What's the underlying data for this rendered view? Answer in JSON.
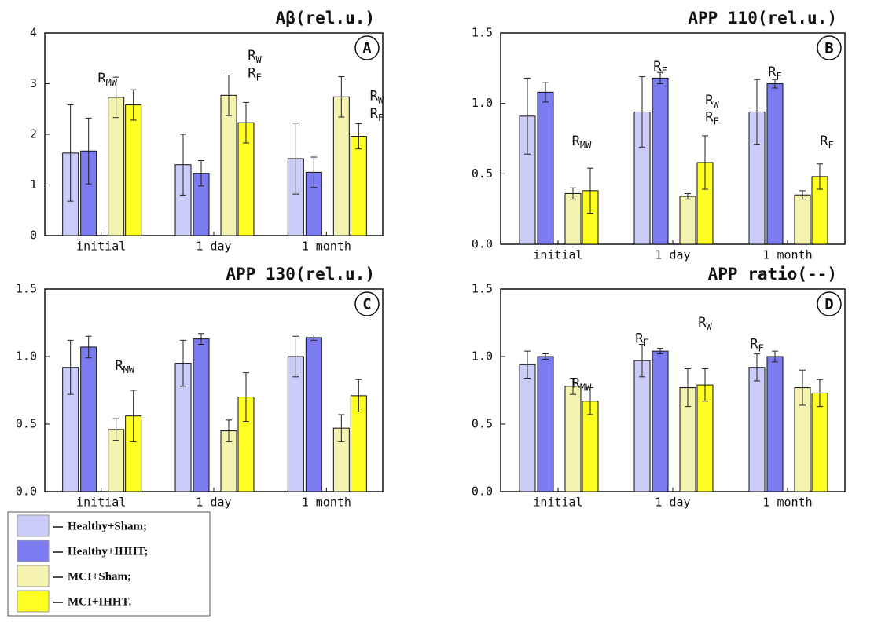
{
  "chart_data": [
    {
      "type": "bar",
      "title": "Aβ(rel.u.)",
      "panel_label": "A",
      "categories": [
        "initial",
        "1 day",
        "1 month"
      ],
      "ylim": [
        0,
        4
      ],
      "yticks": [
        0,
        1,
        2,
        3,
        4
      ],
      "series": [
        {
          "values": [
            1.63,
            1.4,
            1.52
          ],
          "errors": [
            0.95,
            0.6,
            0.7
          ]
        },
        {
          "values": [
            1.67,
            1.23,
            1.25
          ],
          "errors": [
            0.65,
            0.25,
            0.3
          ]
        },
        {
          "values": [
            2.73,
            2.77,
            2.74
          ],
          "errors": [
            0.4,
            0.4,
            0.4
          ]
        },
        {
          "values": [
            2.58,
            2.23,
            1.96
          ],
          "errors": [
            0.3,
            0.4,
            0.25
          ]
        }
      ],
      "annotations": [
        {
          "base": "R",
          "sub": "MW"
        },
        {
          "base": "R",
          "sub": "W"
        },
        {
          "base": "R",
          "sub": "F"
        },
        {
          "base": "R",
          "sub": "W"
        },
        {
          "base": "R",
          "sub": "F"
        }
      ]
    },
    {
      "type": "bar",
      "title": "APP 110(rel.u.)",
      "panel_label": "B",
      "categories": [
        "initial",
        "1 day",
        "1 month"
      ],
      "ylim": [
        0,
        1.5
      ],
      "yticks": [
        {
          "value": 0,
          "label": "0.0"
        },
        0.5,
        {
          "value": 1,
          "label": "1.0"
        },
        1.5
      ],
      "series": [
        {
          "values": [
            0.91,
            0.94,
            0.94
          ],
          "errors": [
            0.27,
            0.25,
            0.23
          ]
        },
        {
          "values": [
            1.08,
            1.18,
            1.14
          ],
          "errors": [
            0.07,
            0.04,
            0.03
          ]
        },
        {
          "values": [
            0.36,
            0.34,
            0.35
          ],
          "errors": [
            0.04,
            0.02,
            0.03
          ]
        },
        {
          "values": [
            0.38,
            0.58,
            0.48
          ],
          "errors": [
            0.16,
            0.19,
            0.09
          ]
        }
      ],
      "annotations": [
        {
          "base": "R",
          "sub": "MW"
        },
        {
          "base": "R",
          "sub": "F"
        },
        {
          "base": "R",
          "sub": "W"
        },
        {
          "base": "R",
          "sub": "F"
        },
        {
          "base": "R",
          "sub": "F"
        },
        {
          "base": "R",
          "sub": "F"
        }
      ]
    },
    {
      "type": "bar",
      "title": "APP 130(rel.u.)",
      "panel_label": "C",
      "categories": [
        "initial",
        "1 day",
        "1 month"
      ],
      "ylim": [
        0,
        1.5
      ],
      "yticks": [
        {
          "value": 0,
          "label": "0.0"
        },
        0.5,
        {
          "value": 1,
          "label": "1.0"
        },
        1.5
      ],
      "series": [
        {
          "values": [
            0.92,
            0.95,
            1.0
          ],
          "errors": [
            0.2,
            0.17,
            0.15
          ]
        },
        {
          "values": [
            1.07,
            1.13,
            1.14
          ],
          "errors": [
            0.08,
            0.04,
            0.02
          ]
        },
        {
          "values": [
            0.46,
            0.45,
            0.47
          ],
          "errors": [
            0.08,
            0.08,
            0.1
          ]
        },
        {
          "values": [
            0.56,
            0.7,
            0.71
          ],
          "errors": [
            0.19,
            0.18,
            0.12
          ]
        }
      ],
      "annotations": [
        {
          "base": "R",
          "sub": "MW"
        }
      ]
    },
    {
      "type": "bar",
      "title": "APP ratio(--)",
      "panel_label": "D",
      "categories": [
        "initial",
        "1 day",
        "1 month"
      ],
      "ylim": [
        0,
        1.5
      ],
      "yticks": [
        {
          "value": 0,
          "label": "0.0"
        },
        0.5,
        {
          "value": 1,
          "label": "1.0"
        },
        1.5
      ],
      "series": [
        {
          "values": [
            0.94,
            0.97,
            0.92
          ],
          "errors": [
            0.1,
            0.12,
            0.1
          ]
        },
        {
          "values": [
            1.0,
            1.04,
            1.0
          ],
          "errors": [
            0.02,
            0.02,
            0.04
          ]
        },
        {
          "values": [
            0.78,
            0.77,
            0.77
          ],
          "errors": [
            0.06,
            0.14,
            0.13
          ]
        },
        {
          "values": [
            0.67,
            0.79,
            0.73
          ],
          "errors": [
            0.1,
            0.12,
            0.1
          ]
        }
      ],
      "annotations": [
        {
          "base": "R",
          "sub": "MW"
        },
        {
          "base": "R",
          "sub": "F"
        },
        {
          "base": "R",
          "sub": "W"
        },
        {
          "base": "R",
          "sub": "F"
        }
      ]
    }
  ],
  "groups": [
    {
      "label": "Healthy+Sham;",
      "color": "#ccccf8"
    },
    {
      "label": "Healthy+IHHT;",
      "color": "#7c7cf0"
    },
    {
      "label": "MCI+Sham;",
      "color": "#f4f4b0"
    },
    {
      "label": "MCI+IHHT.",
      "color": "#ffff22"
    }
  ]
}
